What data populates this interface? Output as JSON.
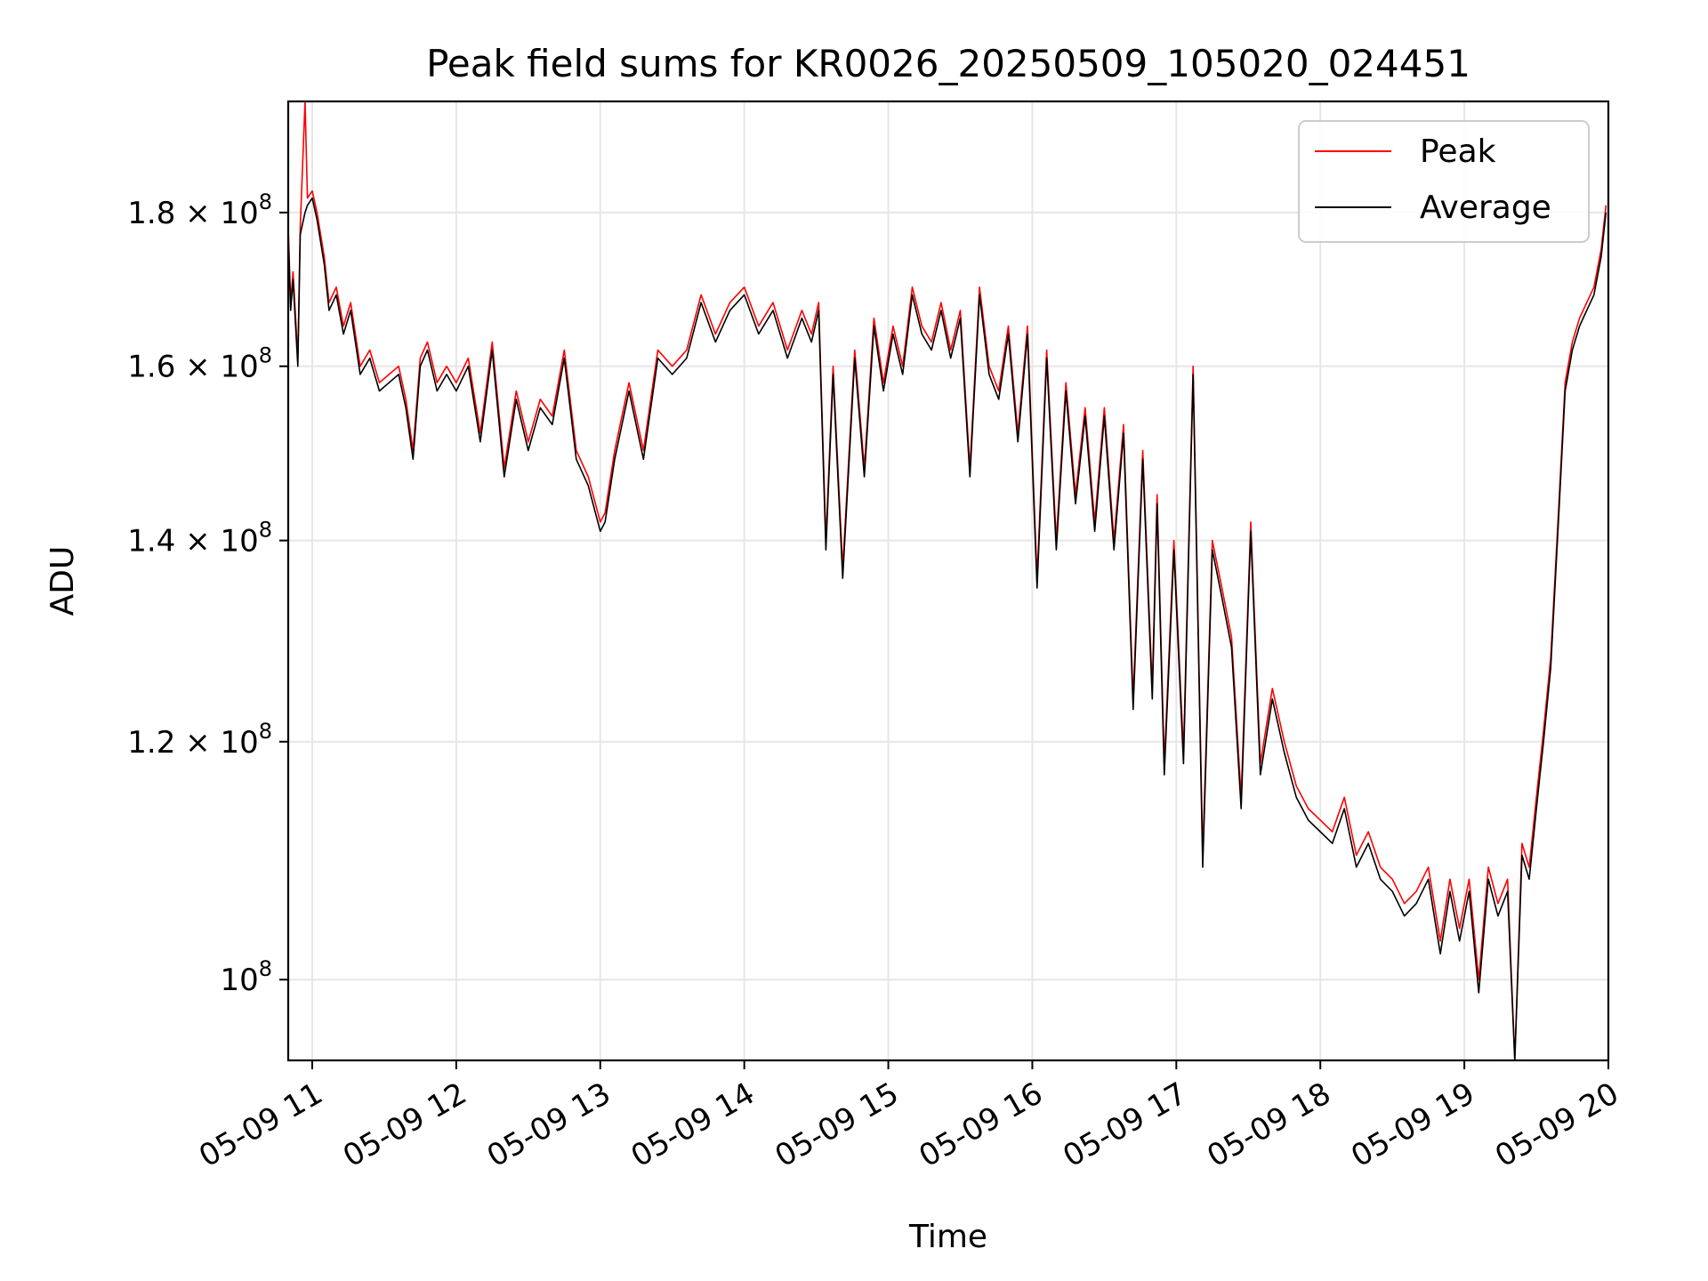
{
  "chart_data": {
    "type": "line",
    "title": "Peak field sums for KR0026_20250509_105020_024451",
    "xlabel": "Time",
    "ylabel": "ADU",
    "yscale": "log",
    "xlim": [
      "2025-05-09 10:50",
      "2025-05-09 20:00"
    ],
    "ylim": [
      94000000,
      196000000
    ],
    "x_ticks": [
      {
        "value": "2025-05-09 11:00",
        "label": "05-09 11"
      },
      {
        "value": "2025-05-09 12:00",
        "label": "05-09 12"
      },
      {
        "value": "2025-05-09 13:00",
        "label": "05-09 13"
      },
      {
        "value": "2025-05-09 14:00",
        "label": "05-09 14"
      },
      {
        "value": "2025-05-09 15:00",
        "label": "05-09 15"
      },
      {
        "value": "2025-05-09 16:00",
        "label": "05-09 16"
      },
      {
        "value": "2025-05-09 17:00",
        "label": "05-09 17"
      },
      {
        "value": "2025-05-09 18:00",
        "label": "05-09 18"
      },
      {
        "value": "2025-05-09 19:00",
        "label": "05-09 19"
      },
      {
        "value": "2025-05-09 20:00",
        "label": "05-09 20"
      }
    ],
    "y_ticks": [
      {
        "value": 100000000,
        "mant": "",
        "exp": "8"
      },
      {
        "value": 120000000,
        "mant": "1.2 × ",
        "exp": "8"
      },
      {
        "value": 140000000,
        "mant": "1.4 × ",
        "exp": "8"
      },
      {
        "value": 160000000,
        "mant": "1.6 × ",
        "exp": "8"
      },
      {
        "value": 180000000,
        "mant": "1.8 × ",
        "exp": "8"
      }
    ],
    "grid": true,
    "legend_position": "top-right",
    "series": [
      {
        "name": "Peak",
        "color": "#ff0000",
        "x": [
          "2025-05-09 10:50",
          "2025-05-09 10:51",
          "2025-05-09 10:52",
          "2025-05-09 10:54",
          "2025-05-09 10:55",
          "2025-05-09 10:57",
          "2025-05-09 10:58",
          "2025-05-09 11:00",
          "2025-05-09 11:02",
          "2025-05-09 11:05",
          "2025-05-09 11:07",
          "2025-05-09 11:10",
          "2025-05-09 11:13",
          "2025-05-09 11:16",
          "2025-05-09 11:20",
          "2025-05-09 11:24",
          "2025-05-09 11:28",
          "2025-05-09 11:32",
          "2025-05-09 11:36",
          "2025-05-09 11:39",
          "2025-05-09 11:42",
          "2025-05-09 11:45",
          "2025-05-09 11:48",
          "2025-05-09 11:52",
          "2025-05-09 11:56",
          "2025-05-09 12:00",
          "2025-05-09 12:05",
          "2025-05-09 12:10",
          "2025-05-09 12:15",
          "2025-05-09 12:20",
          "2025-05-09 12:25",
          "2025-05-09 12:30",
          "2025-05-09 12:35",
          "2025-05-09 12:40",
          "2025-05-09 12:45",
          "2025-05-09 12:50",
          "2025-05-09 12:55",
          "2025-05-09 13:00",
          "2025-05-09 13:02",
          "2025-05-09 13:06",
          "2025-05-09 13:12",
          "2025-05-09 13:18",
          "2025-05-09 13:24",
          "2025-05-09 13:30",
          "2025-05-09 13:36",
          "2025-05-09 13:42",
          "2025-05-09 13:48",
          "2025-05-09 13:54",
          "2025-05-09 14:00",
          "2025-05-09 14:06",
          "2025-05-09 14:12",
          "2025-05-09 14:18",
          "2025-05-09 14:24",
          "2025-05-09 14:28",
          "2025-05-09 14:31",
          "2025-05-09 14:34",
          "2025-05-09 14:37",
          "2025-05-09 14:41",
          "2025-05-09 14:46",
          "2025-05-09 14:50",
          "2025-05-09 14:54",
          "2025-05-09 14:58",
          "2025-05-09 15:02",
          "2025-05-09 15:06",
          "2025-05-09 15:10",
          "2025-05-09 15:14",
          "2025-05-09 15:18",
          "2025-05-09 15:22",
          "2025-05-09 15:26",
          "2025-05-09 15:30",
          "2025-05-09 15:34",
          "2025-05-09 15:38",
          "2025-05-09 15:42",
          "2025-05-09 15:46",
          "2025-05-09 15:50",
          "2025-05-09 15:54",
          "2025-05-09 15:58",
          "2025-05-09 16:02",
          "2025-05-09 16:06",
          "2025-05-09 16:10",
          "2025-05-09 16:14",
          "2025-05-09 16:18",
          "2025-05-09 16:22",
          "2025-05-09 16:26",
          "2025-05-09 16:30",
          "2025-05-09 16:34",
          "2025-05-09 16:38",
          "2025-05-09 16:42",
          "2025-05-09 16:46",
          "2025-05-09 16:50",
          "2025-05-09 16:52",
          "2025-05-09 16:55",
          "2025-05-09 16:59",
          "2025-05-09 17:03",
          "2025-05-09 17:07",
          "2025-05-09 17:11",
          "2025-05-09 17:15",
          "2025-05-09 17:19",
          "2025-05-09 17:23",
          "2025-05-09 17:27",
          "2025-05-09 17:31",
          "2025-05-09 17:35",
          "2025-05-09 17:40",
          "2025-05-09 17:45",
          "2025-05-09 17:50",
          "2025-05-09 17:55",
          "2025-05-09 18:00",
          "2025-05-09 18:05",
          "2025-05-09 18:10",
          "2025-05-09 18:15",
          "2025-05-09 18:20",
          "2025-05-09 18:25",
          "2025-05-09 18:30",
          "2025-05-09 18:35",
          "2025-05-09 18:40",
          "2025-05-09 18:45",
          "2025-05-09 18:50",
          "2025-05-09 18:54",
          "2025-05-09 18:58",
          "2025-05-09 19:02",
          "2025-05-09 19:06",
          "2025-05-09 19:10",
          "2025-05-09 19:14",
          "2025-05-09 19:18",
          "2025-05-09 19:21",
          "2025-05-09 19:24",
          "2025-05-09 19:27",
          "2025-05-09 19:30",
          "2025-05-09 19:33",
          "2025-05-09 19:36",
          "2025-05-09 19:39",
          "2025-05-09 19:42",
          "2025-05-09 19:45",
          "2025-05-09 19:48",
          "2025-05-09 19:51",
          "2025-05-09 19:54",
          "2025-05-09 19:57",
          "2025-05-09 19:59"
        ],
        "values": [
          178000000,
          168000000,
          172000000,
          161000000,
          178000000,
          196000000,
          182000000,
          183000000,
          180000000,
          174000000,
          168000000,
          170000000,
          165000000,
          168000000,
          160000000,
          162000000,
          158000000,
          159000000,
          160000000,
          156000000,
          150000000,
          161000000,
          163000000,
          158000000,
          160000000,
          158000000,
          161000000,
          152000000,
          163000000,
          148000000,
          157000000,
          151000000,
          156000000,
          154000000,
          162000000,
          150000000,
          147000000,
          142000000,
          143000000,
          150000000,
          158000000,
          150000000,
          162000000,
          160000000,
          162000000,
          169000000,
          164000000,
          168000000,
          170000000,
          165000000,
          168000000,
          162000000,
          167000000,
          164000000,
          168000000,
          140000000,
          160000000,
          137000000,
          162000000,
          148000000,
          166000000,
          158000000,
          165000000,
          160000000,
          170000000,
          165000000,
          163000000,
          168000000,
          162000000,
          167000000,
          148000000,
          170000000,
          160000000,
          157000000,
          165000000,
          152000000,
          165000000,
          136000000,
          162000000,
          140000000,
          158000000,
          145000000,
          155000000,
          142000000,
          155000000,
          140000000,
          153000000,
          124000000,
          150000000,
          125000000,
          145000000,
          118000000,
          140000000,
          119000000,
          160000000,
          110000000,
          140000000,
          135000000,
          130000000,
          115000000,
          142000000,
          118000000,
          125000000,
          120000000,
          116000000,
          114000000,
          113000000,
          112000000,
          115000000,
          110000000,
          112000000,
          109000000,
          108000000,
          106000000,
          107000000,
          109000000,
          103000000,
          108000000,
          104000000,
          108000000,
          100000000,
          109000000,
          106000000,
          108000000,
          94000000,
          111000000,
          109000000,
          115000000,
          121000000,
          128000000,
          142000000,
          158000000,
          163000000,
          166000000,
          168000000,
          170000000,
          175000000,
          181000000
        ]
      },
      {
        "name": "Average",
        "color": "#000000",
        "x": [
          "2025-05-09 10:50",
          "2025-05-09 10:51",
          "2025-05-09 10:52",
          "2025-05-09 10:54",
          "2025-05-09 10:55",
          "2025-05-09 10:57",
          "2025-05-09 10:58",
          "2025-05-09 11:00",
          "2025-05-09 11:02",
          "2025-05-09 11:05",
          "2025-05-09 11:07",
          "2025-05-09 11:10",
          "2025-05-09 11:13",
          "2025-05-09 11:16",
          "2025-05-09 11:20",
          "2025-05-09 11:24",
          "2025-05-09 11:28",
          "2025-05-09 11:32",
          "2025-05-09 11:36",
          "2025-05-09 11:39",
          "2025-05-09 11:42",
          "2025-05-09 11:45",
          "2025-05-09 11:48",
          "2025-05-09 11:52",
          "2025-05-09 11:56",
          "2025-05-09 12:00",
          "2025-05-09 12:05",
          "2025-05-09 12:10",
          "2025-05-09 12:15",
          "2025-05-09 12:20",
          "2025-05-09 12:25",
          "2025-05-09 12:30",
          "2025-05-09 12:35",
          "2025-05-09 12:40",
          "2025-05-09 12:45",
          "2025-05-09 12:50",
          "2025-05-09 12:55",
          "2025-05-09 13:00",
          "2025-05-09 13:02",
          "2025-05-09 13:06",
          "2025-05-09 13:12",
          "2025-05-09 13:18",
          "2025-05-09 13:24",
          "2025-05-09 13:30",
          "2025-05-09 13:36",
          "2025-05-09 13:42",
          "2025-05-09 13:48",
          "2025-05-09 13:54",
          "2025-05-09 14:00",
          "2025-05-09 14:06",
          "2025-05-09 14:12",
          "2025-05-09 14:18",
          "2025-05-09 14:24",
          "2025-05-09 14:28",
          "2025-05-09 14:31",
          "2025-05-09 14:34",
          "2025-05-09 14:37",
          "2025-05-09 14:41",
          "2025-05-09 14:46",
          "2025-05-09 14:50",
          "2025-05-09 14:54",
          "2025-05-09 14:58",
          "2025-05-09 15:02",
          "2025-05-09 15:06",
          "2025-05-09 15:10",
          "2025-05-09 15:14",
          "2025-05-09 15:18",
          "2025-05-09 15:22",
          "2025-05-09 15:26",
          "2025-05-09 15:30",
          "2025-05-09 15:34",
          "2025-05-09 15:38",
          "2025-05-09 15:42",
          "2025-05-09 15:46",
          "2025-05-09 15:50",
          "2025-05-09 15:54",
          "2025-05-09 15:58",
          "2025-05-09 16:02",
          "2025-05-09 16:06",
          "2025-05-09 16:10",
          "2025-05-09 16:14",
          "2025-05-09 16:18",
          "2025-05-09 16:22",
          "2025-05-09 16:26",
          "2025-05-09 16:30",
          "2025-05-09 16:34",
          "2025-05-09 16:38",
          "2025-05-09 16:42",
          "2025-05-09 16:46",
          "2025-05-09 16:50",
          "2025-05-09 16:52",
          "2025-05-09 16:55",
          "2025-05-09 16:59",
          "2025-05-09 17:03",
          "2025-05-09 17:07",
          "2025-05-09 17:11",
          "2025-05-09 17:15",
          "2025-05-09 17:19",
          "2025-05-09 17:23",
          "2025-05-09 17:27",
          "2025-05-09 17:31",
          "2025-05-09 17:35",
          "2025-05-09 17:40",
          "2025-05-09 17:45",
          "2025-05-09 17:50",
          "2025-05-09 17:55",
          "2025-05-09 18:00",
          "2025-05-09 18:05",
          "2025-05-09 18:10",
          "2025-05-09 18:15",
          "2025-05-09 18:20",
          "2025-05-09 18:25",
          "2025-05-09 18:30",
          "2025-05-09 18:35",
          "2025-05-09 18:40",
          "2025-05-09 18:45",
          "2025-05-09 18:50",
          "2025-05-09 18:54",
          "2025-05-09 18:58",
          "2025-05-09 19:02",
          "2025-05-09 19:06",
          "2025-05-09 19:10",
          "2025-05-09 19:14",
          "2025-05-09 19:18",
          "2025-05-09 19:21",
          "2025-05-09 19:24",
          "2025-05-09 19:27",
          "2025-05-09 19:30",
          "2025-05-09 19:33",
          "2025-05-09 19:36",
          "2025-05-09 19:39",
          "2025-05-09 19:42",
          "2025-05-09 19:45",
          "2025-05-09 19:48",
          "2025-05-09 19:51",
          "2025-05-09 19:54",
          "2025-05-09 19:57",
          "2025-05-09 19:59"
        ],
        "values": [
          177000000,
          167000000,
          171000000,
          160000000,
          177000000,
          180000000,
          181000000,
          182000000,
          179000000,
          173000000,
          167000000,
          169000000,
          164000000,
          167000000,
          159000000,
          161000000,
          157000000,
          158000000,
          159000000,
          155000000,
          149000000,
          160000000,
          162000000,
          157000000,
          159000000,
          157000000,
          160000000,
          151000000,
          162000000,
          147000000,
          156000000,
          150000000,
          155000000,
          153000000,
          161000000,
          149000000,
          146000000,
          141000000,
          142000000,
          149000000,
          157000000,
          149000000,
          161000000,
          159000000,
          161000000,
          168000000,
          163000000,
          167000000,
          169000000,
          164000000,
          167000000,
          161000000,
          166000000,
          163000000,
          167000000,
          139000000,
          159000000,
          136000000,
          161000000,
          147000000,
          165000000,
          157000000,
          164000000,
          159000000,
          169000000,
          164000000,
          162000000,
          167000000,
          161000000,
          166000000,
          147000000,
          169000000,
          159000000,
          156000000,
          164000000,
          151000000,
          164000000,
          135000000,
          161000000,
          139000000,
          157000000,
          144000000,
          154000000,
          141000000,
          154000000,
          139000000,
          152000000,
          123000000,
          149000000,
          124000000,
          144000000,
          117000000,
          139000000,
          118000000,
          159000000,
          109000000,
          139000000,
          134000000,
          129000000,
          114000000,
          141000000,
          117000000,
          124000000,
          119000000,
          115000000,
          113000000,
          112000000,
          111000000,
          114000000,
          109000000,
          111000000,
          108000000,
          107000000,
          105000000,
          106000000,
          108000000,
          102000000,
          107000000,
          103000000,
          107000000,
          99000000,
          108000000,
          105000000,
          107000000,
          94000000,
          110000000,
          108000000,
          114000000,
          120000000,
          127000000,
          141000000,
          157000000,
          162000000,
          165000000,
          167000000,
          169000000,
          174000000,
          180000000
        ]
      }
    ]
  }
}
